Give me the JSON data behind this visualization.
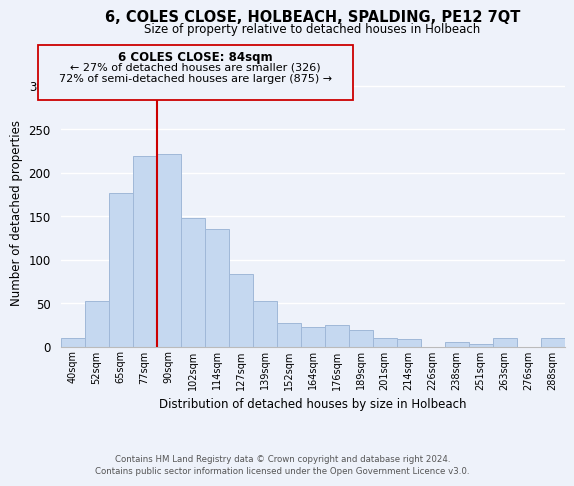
{
  "title": "6, COLES CLOSE, HOLBEACH, SPALDING, PE12 7QT",
  "subtitle": "Size of property relative to detached houses in Holbeach",
  "xlabel": "Distribution of detached houses by size in Holbeach",
  "ylabel": "Number of detached properties",
  "bar_labels": [
    "40sqm",
    "52sqm",
    "65sqm",
    "77sqm",
    "90sqm",
    "102sqm",
    "114sqm",
    "127sqm",
    "139sqm",
    "152sqm",
    "164sqm",
    "176sqm",
    "189sqm",
    "201sqm",
    "214sqm",
    "226sqm",
    "238sqm",
    "251sqm",
    "263sqm",
    "276sqm",
    "288sqm"
  ],
  "bar_values": [
    10,
    53,
    177,
    219,
    222,
    148,
    135,
    84,
    53,
    28,
    23,
    25,
    19,
    10,
    9,
    0,
    6,
    3,
    10,
    0,
    10
  ],
  "bar_color": "#c5d8f0",
  "bar_edge_color": "#a0b8d8",
  "vline_x": 3.5,
  "vline_color": "#cc0000",
  "ylim": [
    0,
    310
  ],
  "yticks": [
    0,
    50,
    100,
    150,
    200,
    250,
    300
  ],
  "annotation_title": "6 COLES CLOSE: 84sqm",
  "annotation_line1": "← 27% of detached houses are smaller (326)",
  "annotation_line2": "72% of semi-detached houses are larger (875) →",
  "footer1": "Contains HM Land Registry data © Crown copyright and database right 2024.",
  "footer2": "Contains public sector information licensed under the Open Government Licence v3.0.",
  "bg_color": "#eef2fa"
}
